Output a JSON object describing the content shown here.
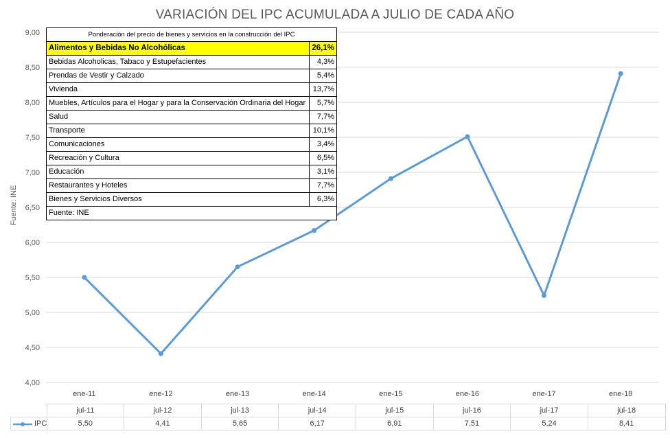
{
  "chart_data": {
    "type": "line",
    "title": "VARIACIÓN DEL IPC ACUMULADA A JULIO DE CADA AÑO",
    "ylabel": "Fuente: INE",
    "ylim": [
      4.0,
      9.0
    ],
    "ytick_labels": [
      "9,00",
      "8,50",
      "8,00",
      "7,50",
      "7,00",
      "6,50",
      "6,00",
      "5,50",
      "5,00",
      "4,50",
      "4,00"
    ],
    "ytick_values": [
      9.0,
      8.5,
      8.0,
      7.5,
      7.0,
      6.5,
      6.0,
      5.5,
      5.0,
      4.5,
      4.0
    ],
    "axis_categories": [
      "ene-11",
      "ene-12",
      "ene-13",
      "ene-14",
      "ene-15",
      "ene-16",
      "ene-17",
      "ene-18"
    ],
    "table_categories": [
      "jul-11",
      "jul-12",
      "jul-13",
      "jul-14",
      "jul-15",
      "jul-16",
      "jul-17",
      "jul-18"
    ],
    "series": [
      {
        "name": "IPC",
        "values": [
          5.5,
          4.41,
          5.65,
          6.17,
          6.91,
          7.51,
          5.24,
          8.41
        ],
        "labels": [
          "5,50",
          "4,41",
          "5,65",
          "6,17",
          "6,91",
          "7,51",
          "5,24",
          "8,41"
        ],
        "color": "#5b9bd5"
      }
    ],
    "grid": true,
    "legend": "data-table"
  },
  "weights_table": {
    "caption": "Ponderación del precio de bienes y servicios en la construcción del IPC",
    "rows": [
      {
        "label": "Alimentos y Bebidas No Alcohólicas",
        "value": "26,1%",
        "highlight": true
      },
      {
        "label": "Bebidas Alcoholicas, Tabaco y Estupefacientes",
        "value": "4,3%"
      },
      {
        "label": "Prendas de Vestir y Calzado",
        "value": "5,4%"
      },
      {
        "label": "Vivienda",
        "value": "13,7%"
      },
      {
        "label": "Muebles, Artículos para el Hogar y para la Conservación Ordinaria del Hogar",
        "value": "5,7%"
      },
      {
        "label": "Salud",
        "value": "7,7%"
      },
      {
        "label": "Transporte",
        "value": "10,1%"
      },
      {
        "label": "Comunicaciones",
        "value": "3,4%"
      },
      {
        "label": "Recreación y Cultura",
        "value": "6,5%"
      },
      {
        "label": "Educación",
        "value": "3,1%"
      },
      {
        "label": "Restaurantes y Hoteles",
        "value": "7,7%"
      },
      {
        "label": "Bienes y Servicios Diversos",
        "value": "6,3%"
      }
    ],
    "footer": "Fuente: INE",
    "highlight_color": "#ffff00"
  }
}
